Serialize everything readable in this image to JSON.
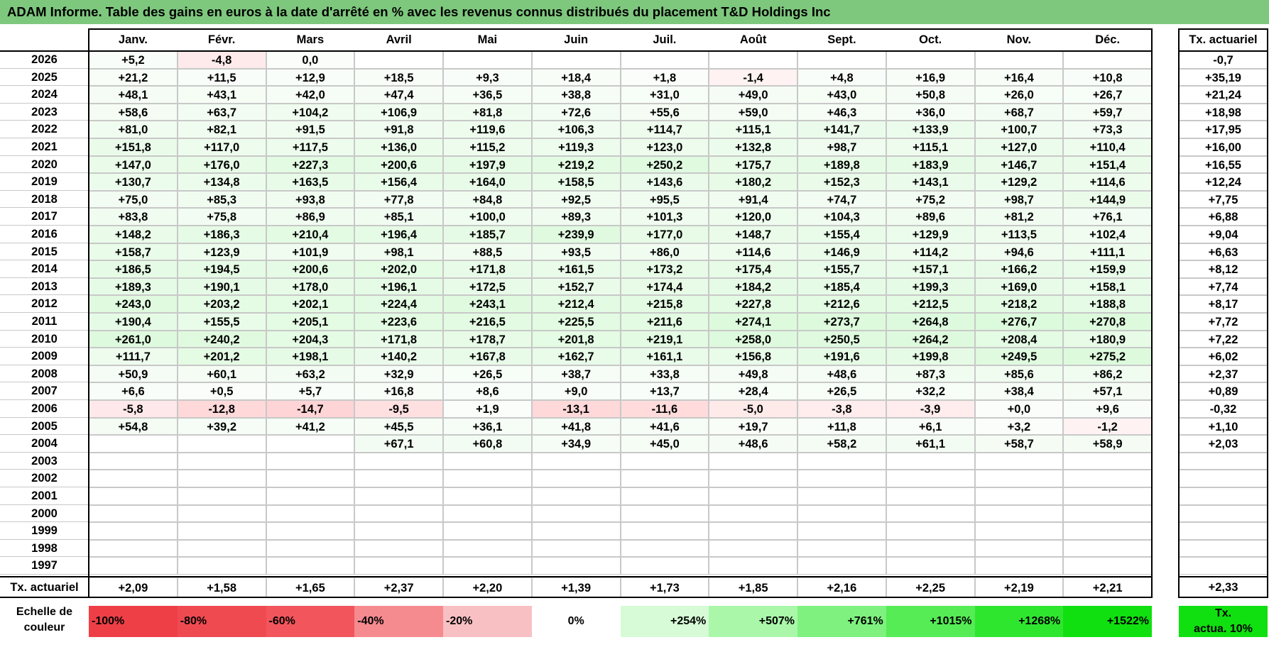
{
  "title": "ADAM Informe. Table des gains en euros à la date d'arrêté en % avec les revenus connus distribués du placement T&D Holdings Inc",
  "months": [
    "Janv.",
    "Févr.",
    "Mars",
    "Avril",
    "Mai",
    "Juin",
    "Juil.",
    "Août",
    "Sept.",
    "Oct.",
    "Nov.",
    "Déc."
  ],
  "rate_header": "Tx. actuariel",
  "rows": [
    {
      "year": "2026",
      "values": [
        "+5,2",
        "-4,8",
        "0,0",
        "",
        "",
        "",
        "",
        "",
        "",
        "",
        "",
        ""
      ],
      "rate": "-0,7"
    },
    {
      "year": "2025",
      "values": [
        "+21,2",
        "+11,5",
        "+12,9",
        "+18,5",
        "+9,3",
        "+18,4",
        "+1,8",
        "-1,4",
        "+4,8",
        "+16,9",
        "+16,4",
        "+10,8"
      ],
      "rate": "+35,19"
    },
    {
      "year": "2024",
      "values": [
        "+48,1",
        "+43,1",
        "+42,0",
        "+47,4",
        "+36,5",
        "+38,8",
        "+31,0",
        "+49,0",
        "+43,0",
        "+50,8",
        "+26,0",
        "+26,7"
      ],
      "rate": "+21,24"
    },
    {
      "year": "2023",
      "values": [
        "+58,6",
        "+63,7",
        "+104,2",
        "+106,9",
        "+81,8",
        "+72,6",
        "+55,6",
        "+59,0",
        "+46,3",
        "+36,0",
        "+68,7",
        "+59,7"
      ],
      "rate": "+18,98"
    },
    {
      "year": "2022",
      "values": [
        "+81,0",
        "+82,1",
        "+91,5",
        "+91,8",
        "+119,6",
        "+106,3",
        "+114,7",
        "+115,1",
        "+141,7",
        "+133,9",
        "+100,7",
        "+73,3"
      ],
      "rate": "+17,95"
    },
    {
      "year": "2021",
      "values": [
        "+151,8",
        "+117,0",
        "+117,5",
        "+136,0",
        "+115,2",
        "+119,3",
        "+123,0",
        "+132,8",
        "+98,7",
        "+115,1",
        "+127,0",
        "+110,4"
      ],
      "rate": "+16,00"
    },
    {
      "year": "2020",
      "values": [
        "+147,0",
        "+176,0",
        "+227,3",
        "+200,6",
        "+197,9",
        "+219,2",
        "+250,2",
        "+175,7",
        "+189,8",
        "+183,9",
        "+146,7",
        "+151,4"
      ],
      "rate": "+16,55"
    },
    {
      "year": "2019",
      "values": [
        "+130,7",
        "+134,8",
        "+163,5",
        "+156,4",
        "+164,0",
        "+158,5",
        "+143,6",
        "+180,2",
        "+152,3",
        "+143,1",
        "+129,2",
        "+114,6"
      ],
      "rate": "+12,24"
    },
    {
      "year": "2018",
      "values": [
        "+75,0",
        "+85,3",
        "+93,8",
        "+77,8",
        "+84,8",
        "+92,5",
        "+95,5",
        "+91,4",
        "+74,7",
        "+75,2",
        "+98,7",
        "+144,9"
      ],
      "rate": "+7,75"
    },
    {
      "year": "2017",
      "values": [
        "+83,8",
        "+75,8",
        "+86,9",
        "+85,1",
        "+100,0",
        "+89,3",
        "+101,3",
        "+120,0",
        "+104,3",
        "+89,6",
        "+81,2",
        "+76,1"
      ],
      "rate": "+6,88"
    },
    {
      "year": "2016",
      "values": [
        "+148,2",
        "+186,3",
        "+210,4",
        "+196,4",
        "+185,7",
        "+239,9",
        "+177,0",
        "+148,7",
        "+155,4",
        "+129,9",
        "+113,5",
        "+102,4"
      ],
      "rate": "+9,04"
    },
    {
      "year": "2015",
      "values": [
        "+158,7",
        "+123,9",
        "+101,9",
        "+98,1",
        "+88,5",
        "+93,5",
        "+86,0",
        "+114,6",
        "+146,9",
        "+114,2",
        "+94,6",
        "+111,1"
      ],
      "rate": "+6,63"
    },
    {
      "year": "2014",
      "values": [
        "+186,5",
        "+194,5",
        "+200,6",
        "+202,0",
        "+171,8",
        "+161,5",
        "+173,2",
        "+175,4",
        "+155,7",
        "+157,1",
        "+166,2",
        "+159,9"
      ],
      "rate": "+8,12"
    },
    {
      "year": "2013",
      "values": [
        "+189,3",
        "+190,1",
        "+178,0",
        "+196,1",
        "+172,5",
        "+152,7",
        "+174,4",
        "+184,2",
        "+185,4",
        "+199,3",
        "+169,0",
        "+158,1"
      ],
      "rate": "+7,74"
    },
    {
      "year": "2012",
      "values": [
        "+243,0",
        "+203,2",
        "+202,1",
        "+224,4",
        "+243,1",
        "+212,4",
        "+215,8",
        "+227,8",
        "+212,6",
        "+212,5",
        "+218,2",
        "+188,8"
      ],
      "rate": "+8,17"
    },
    {
      "year": "2011",
      "values": [
        "+190,4",
        "+155,5",
        "+205,1",
        "+223,6",
        "+216,5",
        "+225,5",
        "+211,6",
        "+274,1",
        "+273,7",
        "+264,8",
        "+276,7",
        "+270,8"
      ],
      "rate": "+7,72"
    },
    {
      "year": "2010",
      "values": [
        "+261,0",
        "+240,2",
        "+204,3",
        "+171,8",
        "+178,7",
        "+201,8",
        "+219,1",
        "+258,0",
        "+250,5",
        "+264,2",
        "+208,4",
        "+180,9"
      ],
      "rate": "+7,22"
    },
    {
      "year": "2009",
      "values": [
        "+111,7",
        "+201,2",
        "+198,1",
        "+140,2",
        "+167,8",
        "+162,7",
        "+161,1",
        "+156,8",
        "+191,6",
        "+199,8",
        "+249,5",
        "+275,2"
      ],
      "rate": "+6,02"
    },
    {
      "year": "2008",
      "values": [
        "+50,9",
        "+60,1",
        "+63,2",
        "+32,9",
        "+26,5",
        "+38,7",
        "+33,8",
        "+49,8",
        "+48,6",
        "+87,3",
        "+85,6",
        "+86,2"
      ],
      "rate": "+2,37"
    },
    {
      "year": "2007",
      "values": [
        "+6,6",
        "+0,5",
        "+5,7",
        "+16,8",
        "+8,6",
        "+9,0",
        "+13,7",
        "+28,4",
        "+26,5",
        "+32,2",
        "+38,4",
        "+57,1"
      ],
      "rate": "+0,89"
    },
    {
      "year": "2006",
      "values": [
        "-5,8",
        "-12,8",
        "-14,7",
        "-9,5",
        "+1,9",
        "-13,1",
        "-11,6",
        "-5,0",
        "-3,8",
        "-3,9",
        "+0,0",
        "+9,6"
      ],
      "rate": "-0,32"
    },
    {
      "year": "2005",
      "values": [
        "+54,8",
        "+39,2",
        "+41,2",
        "+45,5",
        "+36,1",
        "+41,8",
        "+41,6",
        "+19,7",
        "+11,8",
        "+6,1",
        "+3,2",
        "-1,2"
      ],
      "rate": "+1,10"
    },
    {
      "year": "2004",
      "values": [
        "",
        "",
        "",
        "+67,1",
        "+60,8",
        "+34,9",
        "+45,0",
        "+48,6",
        "+58,2",
        "+61,1",
        "+58,7",
        "+58,9"
      ],
      "rate": "+2,03"
    },
    {
      "year": "2003",
      "values": [
        "",
        "",
        "",
        "",
        "",
        "",
        "",
        "",
        "",
        "",
        "",
        ""
      ],
      "rate": ""
    },
    {
      "year": "2002",
      "values": [
        "",
        "",
        "",
        "",
        "",
        "",
        "",
        "",
        "",
        "",
        "",
        ""
      ],
      "rate": ""
    },
    {
      "year": "2001",
      "values": [
        "",
        "",
        "",
        "",
        "",
        "",
        "",
        "",
        "",
        "",
        "",
        ""
      ],
      "rate": ""
    },
    {
      "year": "2000",
      "values": [
        "",
        "",
        "",
        "",
        "",
        "",
        "",
        "",
        "",
        "",
        "",
        ""
      ],
      "rate": ""
    },
    {
      "year": "1999",
      "values": [
        "",
        "",
        "",
        "",
        "",
        "",
        "",
        "",
        "",
        "",
        "",
        ""
      ],
      "rate": ""
    },
    {
      "year": "1998",
      "values": [
        "",
        "",
        "",
        "",
        "",
        "",
        "",
        "",
        "",
        "",
        "",
        ""
      ],
      "rate": ""
    },
    {
      "year": "1997",
      "values": [
        "",
        "",
        "",
        "",
        "",
        "",
        "",
        "",
        "",
        "",
        "",
        ""
      ],
      "rate": ""
    }
  ],
  "footer": {
    "label": "Tx. actuariel",
    "values": [
      "+2,09",
      "+1,58",
      "+1,65",
      "+2,37",
      "+2,20",
      "+1,39",
      "+1,73",
      "+1,85",
      "+2,16",
      "+2,25",
      "+2,19",
      "+2,21"
    ],
    "total": "+2,33"
  },
  "scale": {
    "label_line1": "Echelle de",
    "label_line2": "couleur",
    "items": [
      {
        "text": "-100%",
        "color": "#ee3f47",
        "align": "left"
      },
      {
        "text": "-80%",
        "color": "#f04a51",
        "align": "left"
      },
      {
        "text": "-60%",
        "color": "#f2555c",
        "align": "left"
      },
      {
        "text": "-40%",
        "color": "#f58a8f",
        "align": "left"
      },
      {
        "text": "-20%",
        "color": "#f9c0c3",
        "align": "left"
      },
      {
        "text": "0%",
        "color": "#ffffff",
        "align": "center"
      },
      {
        "text": "+254%",
        "color": "#d6fbd6",
        "align": "right"
      },
      {
        "text": "+507%",
        "color": "#aaf7aa",
        "align": "right"
      },
      {
        "text": "+761%",
        "color": "#7ef17e",
        "align": "right"
      },
      {
        "text": "+1015%",
        "color": "#55ec55",
        "align": "right"
      },
      {
        "text": "+1268%",
        "color": "#2fe62f",
        "align": "right"
      },
      {
        "text": "+1522%",
        "color": "#10e010",
        "align": "right"
      }
    ],
    "rate_box_line1": "Tx.",
    "rate_box_line2": "actua. 10%",
    "rate_box_color": "#10e010"
  }
}
